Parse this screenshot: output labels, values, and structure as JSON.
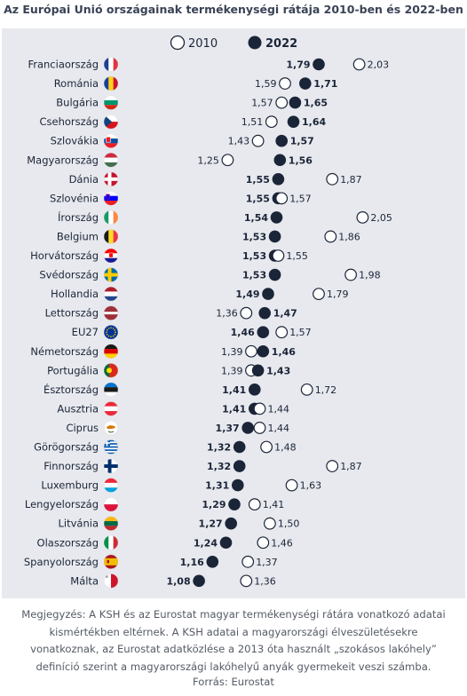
{
  "title": "Az Európai Unió országainak termékenységi rátája 2010-ben és 2022-ben",
  "legend": {
    "y2010": "2010",
    "y2022": "2022"
  },
  "colors": {
    "dark": "#1b2538",
    "panel": "#e7e9ee",
    "open_fill": "#ffffff"
  },
  "chart_data": {
    "type": "dot",
    "title": "Az Európai Unió országainak termékenységi rátája 2010-ben és 2022-ben",
    "series": [
      {
        "name": "2010",
        "marker": "open-circle"
      },
      {
        "name": "2022",
        "marker": "filled-circle"
      }
    ],
    "grid": false,
    "legend_position": "top",
    "rows": [
      {
        "country": "Franciaország",
        "flag": "france",
        "v2010": 2.03,
        "v2022": 1.79,
        "l2010": "2,03",
        "l2022": "1,79"
      },
      {
        "country": "Románia",
        "flag": "romania",
        "v2010": 1.59,
        "v2022": 1.71,
        "l2010": "1,59",
        "l2022": "1,71"
      },
      {
        "country": "Bulgária",
        "flag": "bulgaria",
        "v2010": 1.57,
        "v2022": 1.65,
        "l2010": "1,57",
        "l2022": "1,65"
      },
      {
        "country": "Csehország",
        "flag": "czechia",
        "v2010": 1.51,
        "v2022": 1.64,
        "l2010": "1,51",
        "l2022": "1,64"
      },
      {
        "country": "Szlovákia",
        "flag": "slovakia",
        "v2010": 1.43,
        "v2022": 1.57,
        "l2010": "1,43",
        "l2022": "1,57"
      },
      {
        "country": "Magyarország",
        "flag": "hungary",
        "v2010": 1.25,
        "v2022": 1.56,
        "l2010": "1,25",
        "l2022": "1,56"
      },
      {
        "country": "Dánia",
        "flag": "denmark",
        "v2010": 1.87,
        "v2022": 1.55,
        "l2010": "1,87",
        "l2022": "1,55"
      },
      {
        "country": "Szlovénia",
        "flag": "slovenia",
        "v2010": 1.57,
        "v2022": 1.55,
        "l2010": "1,57",
        "l2022": "1,55"
      },
      {
        "country": "Írország",
        "flag": "ireland",
        "v2010": 2.05,
        "v2022": 1.54,
        "l2010": "2,05",
        "l2022": "1,54"
      },
      {
        "country": "Belgium",
        "flag": "belgium",
        "v2010": 1.86,
        "v2022": 1.53,
        "l2010": "1,86",
        "l2022": "1,53"
      },
      {
        "country": "Horvátország",
        "flag": "croatia",
        "v2010": 1.55,
        "v2022": 1.53,
        "l2010": "1,55",
        "l2022": "1,53"
      },
      {
        "country": "Svédország",
        "flag": "sweden",
        "v2010": 1.98,
        "v2022": 1.53,
        "l2010": "1,98",
        "l2022": "1,53"
      },
      {
        "country": "Hollandia",
        "flag": "netherlands",
        "v2010": 1.79,
        "v2022": 1.49,
        "l2010": "1,79",
        "l2022": "1,49"
      },
      {
        "country": "Lettország",
        "flag": "latvia",
        "v2010": 1.36,
        "v2022": 1.47,
        "l2010": "1,36",
        "l2022": "1,47"
      },
      {
        "country": "EU27",
        "flag": "eu",
        "v2010": 1.57,
        "v2022": 1.46,
        "l2010": "1,57",
        "l2022": "1,46"
      },
      {
        "country": "Németország",
        "flag": "germany",
        "v2010": 1.39,
        "v2022": 1.46,
        "l2010": "1,39",
        "l2022": "1,46"
      },
      {
        "country": "Portugália",
        "flag": "portugal",
        "v2010": 1.39,
        "v2022": 1.43,
        "l2010": "1,39",
        "l2022": "1,43"
      },
      {
        "country": "Észtország",
        "flag": "estonia",
        "v2010": 1.72,
        "v2022": 1.41,
        "l2010": "1,72",
        "l2022": "1,41"
      },
      {
        "country": "Ausztria",
        "flag": "austria",
        "v2010": 1.44,
        "v2022": 1.41,
        "l2010": "1,44",
        "l2022": "1,41"
      },
      {
        "country": "Ciprus",
        "flag": "cyprus",
        "v2010": 1.44,
        "v2022": 1.37,
        "l2010": "1,44",
        "l2022": "1,37"
      },
      {
        "country": "Görögország",
        "flag": "greece",
        "v2010": 1.48,
        "v2022": 1.32,
        "l2010": "1,48",
        "l2022": "1,32"
      },
      {
        "country": "Finnország",
        "flag": "finland",
        "v2010": 1.87,
        "v2022": 1.32,
        "l2010": "1,87",
        "l2022": "1,32"
      },
      {
        "country": "Luxemburg",
        "flag": "luxembourg",
        "v2010": 1.63,
        "v2022": 1.31,
        "l2010": "1,63",
        "l2022": "1,31"
      },
      {
        "country": "Lengyelország",
        "flag": "poland",
        "v2010": 1.41,
        "v2022": 1.29,
        "l2010": "1,41",
        "l2022": "1,29"
      },
      {
        "country": "Litvánia",
        "flag": "lithuania",
        "v2010": 1.5,
        "v2022": 1.27,
        "l2010": "1,50",
        "l2022": "1,27"
      },
      {
        "country": "Olaszország",
        "flag": "italy",
        "v2010": 1.46,
        "v2022": 1.24,
        "l2010": "1,46",
        "l2022": "1,24"
      },
      {
        "country": "Spanyolország",
        "flag": "spain",
        "v2010": 1.37,
        "v2022": 1.16,
        "l2010": "1,37",
        "l2022": "1,16"
      },
      {
        "country": "Málta",
        "flag": "malta",
        "v2010": 1.36,
        "v2022": 1.08,
        "l2010": "1,36",
        "l2022": "1,08"
      }
    ]
  },
  "note": "Megjegyzés: A KSH és az Eurostat magyar termékenységi rátára vonatkozó adatai kismértékben eltérnek. A KSH adatai a magyarországi élveszületésekre vonatkoznak, az Eurostat adatközlése a 2013 óta használt „szokásos lakóhely” definíció szerint a magyarországi lakóhelyű anyák gyermekeit veszi számba.",
  "source": "Forrás: Eurostat"
}
